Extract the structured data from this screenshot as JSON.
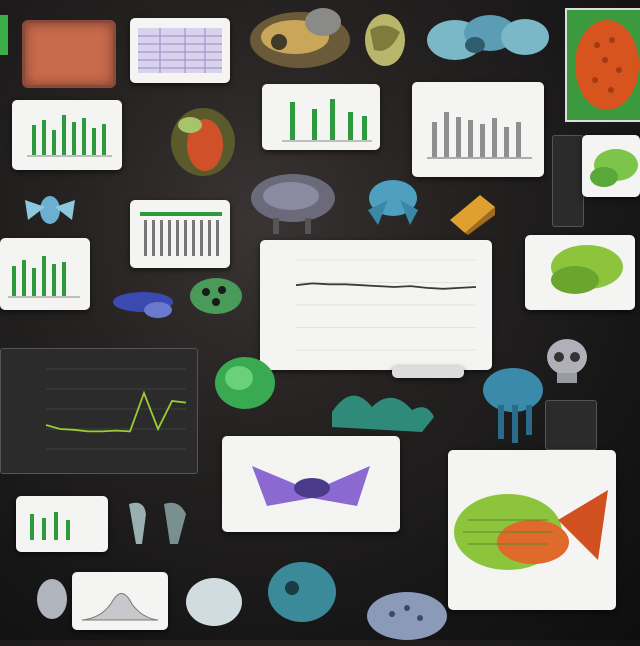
{
  "colors": {
    "background": "#1a1818",
    "card": "#f4f4f2",
    "bar_green": "#2d9a3e",
    "bar_gray": "#8f8f8f",
    "line": "#3a3a3a",
    "dark_chart_line": "#9acd32",
    "accent_orange": "#e06a2c",
    "accent_teal": "#3fa6a8"
  },
  "center_chart": {
    "type": "line",
    "values": [
      0.72,
      0.74,
      0.73,
      0.73,
      0.72,
      0.71,
      0.7,
      0.71,
      0.69,
      0.68,
      0.69,
      0.7
    ],
    "ylim": [
      0,
      1
    ]
  },
  "dark_chart": {
    "type": "line",
    "values": [
      0.3,
      0.25,
      0.24,
      0.22,
      0.22,
      0.23,
      0.22,
      0.7,
      0.25,
      0.6,
      0.58
    ],
    "ylim": [
      0,
      1
    ]
  },
  "icons": [
    "microscopy-card-icon",
    "organism-specimen-icon",
    "leaf-specimen-icon",
    "jellyfish-icon",
    "skull-icon",
    "fish-icon"
  ]
}
